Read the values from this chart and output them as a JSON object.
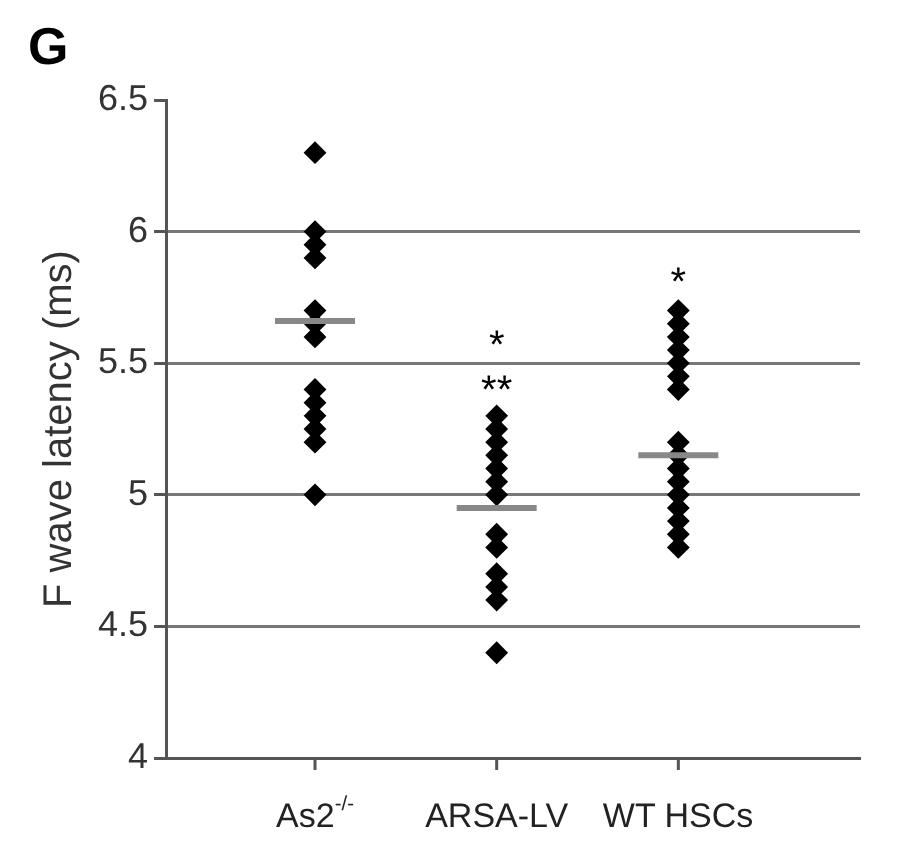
{
  "chart_data": {
    "type": "scatter",
    "title": "G",
    "ylabel": "F wave latency (ms)",
    "categories": [
      "As2$^{-/-}$",
      "ARSA-LV",
      "WT HSCs"
    ],
    "ylim": [
      4,
      6.5
    ],
    "yticks": [
      4,
      4.5,
      5,
      5.5,
      6,
      6.5
    ],
    "grid": "y",
    "legend": false,
    "series": [
      {
        "color": "#000000",
        "marker": "diamond",
        "x": [
          "As2$^{-/-}$",
          "As2$^{-/-}$",
          "As2$^{-/-}$",
          "As2$^{-/-}$",
          "As2$^{-/-}$",
          "As2$^{-/-}$",
          "As2$^{-/-}$",
          "As2$^{-/-}$",
          "As2$^{-/-}$",
          "As2$^{-/-}$",
          "As2$^{-/-}$",
          "As2$^{-/-}$",
          "As2$^{-/-}$"
        ],
        "values": [
          6.3,
          6.0,
          5.95,
          5.9,
          5.7,
          5.65,
          5.6,
          5.4,
          5.35,
          5.3,
          5.25,
          5.2,
          5.0
        ]
      },
      {
        "color": "#000000",
        "marker": "diamond",
        "x": [
          "ARSA-LV",
          "ARSA-LV",
          "ARSA-LV",
          "ARSA-LV",
          "ARSA-LV",
          "ARSA-LV",
          "ARSA-LV",
          "ARSA-LV",
          "ARSA-LV",
          "ARSA-LV",
          "ARSA-LV",
          "ARSA-LV",
          "ARSA-LV"
        ],
        "values": [
          5.3,
          5.25,
          5.2,
          5.15,
          5.1,
          5.05,
          5.0,
          4.85,
          4.8,
          4.7,
          4.65,
          4.6,
          4.4
        ]
      },
      {
        "color": "#000000",
        "marker": "diamond",
        "x": [
          "WT HSCs",
          "WT HSCs",
          "WT HSCs",
          "WT HSCs",
          "WT HSCs",
          "WT HSCs",
          "WT HSCs",
          "WT HSCs",
          "WT HSCs",
          "WT HSCs",
          "WT HSCs",
          "WT HSCs",
          "WT HSCs",
          "WT HSCs",
          "WT HSCs",
          "WT HSCs"
        ],
        "values": [
          5.7,
          5.65,
          5.6,
          5.55,
          5.5,
          5.45,
          5.4,
          5.2,
          5.15,
          5.1,
          5.05,
          5.0,
          4.95,
          4.9,
          4.85,
          4.8
        ]
      }
    ],
    "ref_lines": [
      {
        "axis": "y",
        "value": 5.66,
        "color": "#888888"
      },
      {
        "axis": "y",
        "value": 4.95,
        "color": "#888888"
      },
      {
        "axis": "y",
        "value": 5.15,
        "color": "#888888"
      }
    ],
    "annotations": [
      "*",
      "**",
      "*"
    ]
  }
}
